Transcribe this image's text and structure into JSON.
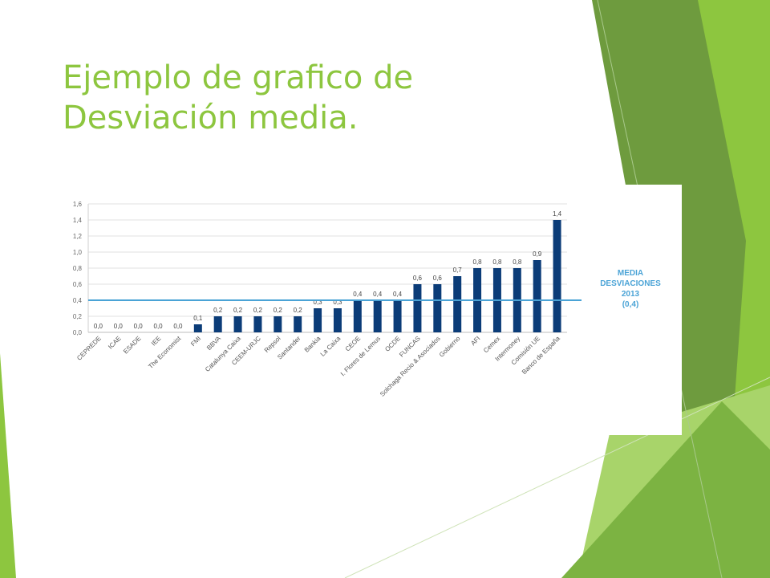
{
  "slide": {
    "title_line1": "Ejemplo de grafico de",
    "title_line2": "Desviación media.",
    "colors": {
      "title": "#8dc63f",
      "accent_dark": "#5e8f2e",
      "accent_light": "#8dc63f",
      "bar": "#0b3c78",
      "mean_line": "#4aa3d6"
    }
  },
  "chart_data": {
    "type": "bar",
    "categories": [
      "CEPREDE",
      "ICAE",
      "ESADE",
      "IEE",
      "The Economist",
      "FMI",
      "BBVA",
      "Catalunya Caixa",
      "CEEM-URJC",
      "Repsol",
      "Santander",
      "Bankia",
      "La Caixa",
      "CEOE",
      "I. Flores de Lemus",
      "OCDE",
      "FUNCAS",
      "Solchaga Recio & Asociados",
      "Gobierno",
      "AFI",
      "Cemex",
      "Intermoney",
      "Comisión UE",
      "Banco de España"
    ],
    "values": [
      0.0,
      0.0,
      0.0,
      0.0,
      0.0,
      0.1,
      0.2,
      0.2,
      0.2,
      0.2,
      0.2,
      0.3,
      0.3,
      0.4,
      0.4,
      0.4,
      0.6,
      0.6,
      0.7,
      0.8,
      0.8,
      0.8,
      0.9,
      1.4
    ],
    "value_labels": [
      "0,0",
      "0,0",
      "0,0",
      "0,0",
      "0,0",
      "0,1",
      "0,2",
      "0,2",
      "0,2",
      "0,2",
      "0,2",
      "0,3",
      "0,3",
      "0,4",
      "0,4",
      "0,4",
      "0,6",
      "0,6",
      "0,7",
      "0,8",
      "0,8",
      "0,8",
      "0,9",
      "1,4"
    ],
    "y_ticks": [
      0.0,
      0.2,
      0.4,
      0.6,
      0.8,
      1.0,
      1.2,
      1.4,
      1.6
    ],
    "y_tick_labels": [
      "0,0",
      "0,2",
      "0,4",
      "0,6",
      "0,8",
      "1,0",
      "1,2",
      "1,4",
      "1,6"
    ],
    "ylim": [
      0,
      1.6
    ],
    "grid": true,
    "mean_line": {
      "value": 0.4,
      "label_lines": [
        "MEDIA",
        "DESVIACIONES",
        "2013",
        "(0,4)"
      ]
    },
    "legend": "none"
  }
}
